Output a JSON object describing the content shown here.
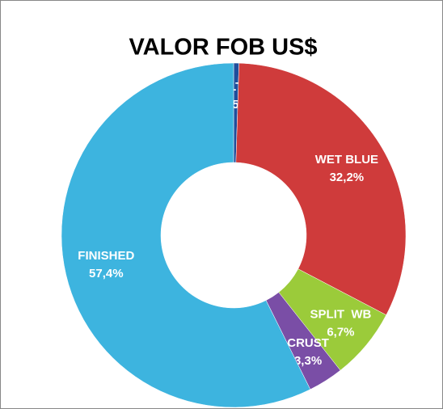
{
  "chart_data": {
    "type": "donut",
    "title": "VALOR FOB US$",
    "categories": [
      "SALTED",
      "WET BLUE",
      "SPLIT  WB",
      "CRUST",
      "FINISHED"
    ],
    "values": [
      0.5,
      32.2,
      6.7,
      3.3,
      57.4
    ],
    "value_labels": [
      "0,5%",
      "32,2%",
      "6,7%",
      "3,3%",
      "57,4%"
    ],
    "colors": [
      "#1f4e9c",
      "#cf3b3b",
      "#9bcb3a",
      "#7a4ea6",
      "#3db4df"
    ]
  }
}
